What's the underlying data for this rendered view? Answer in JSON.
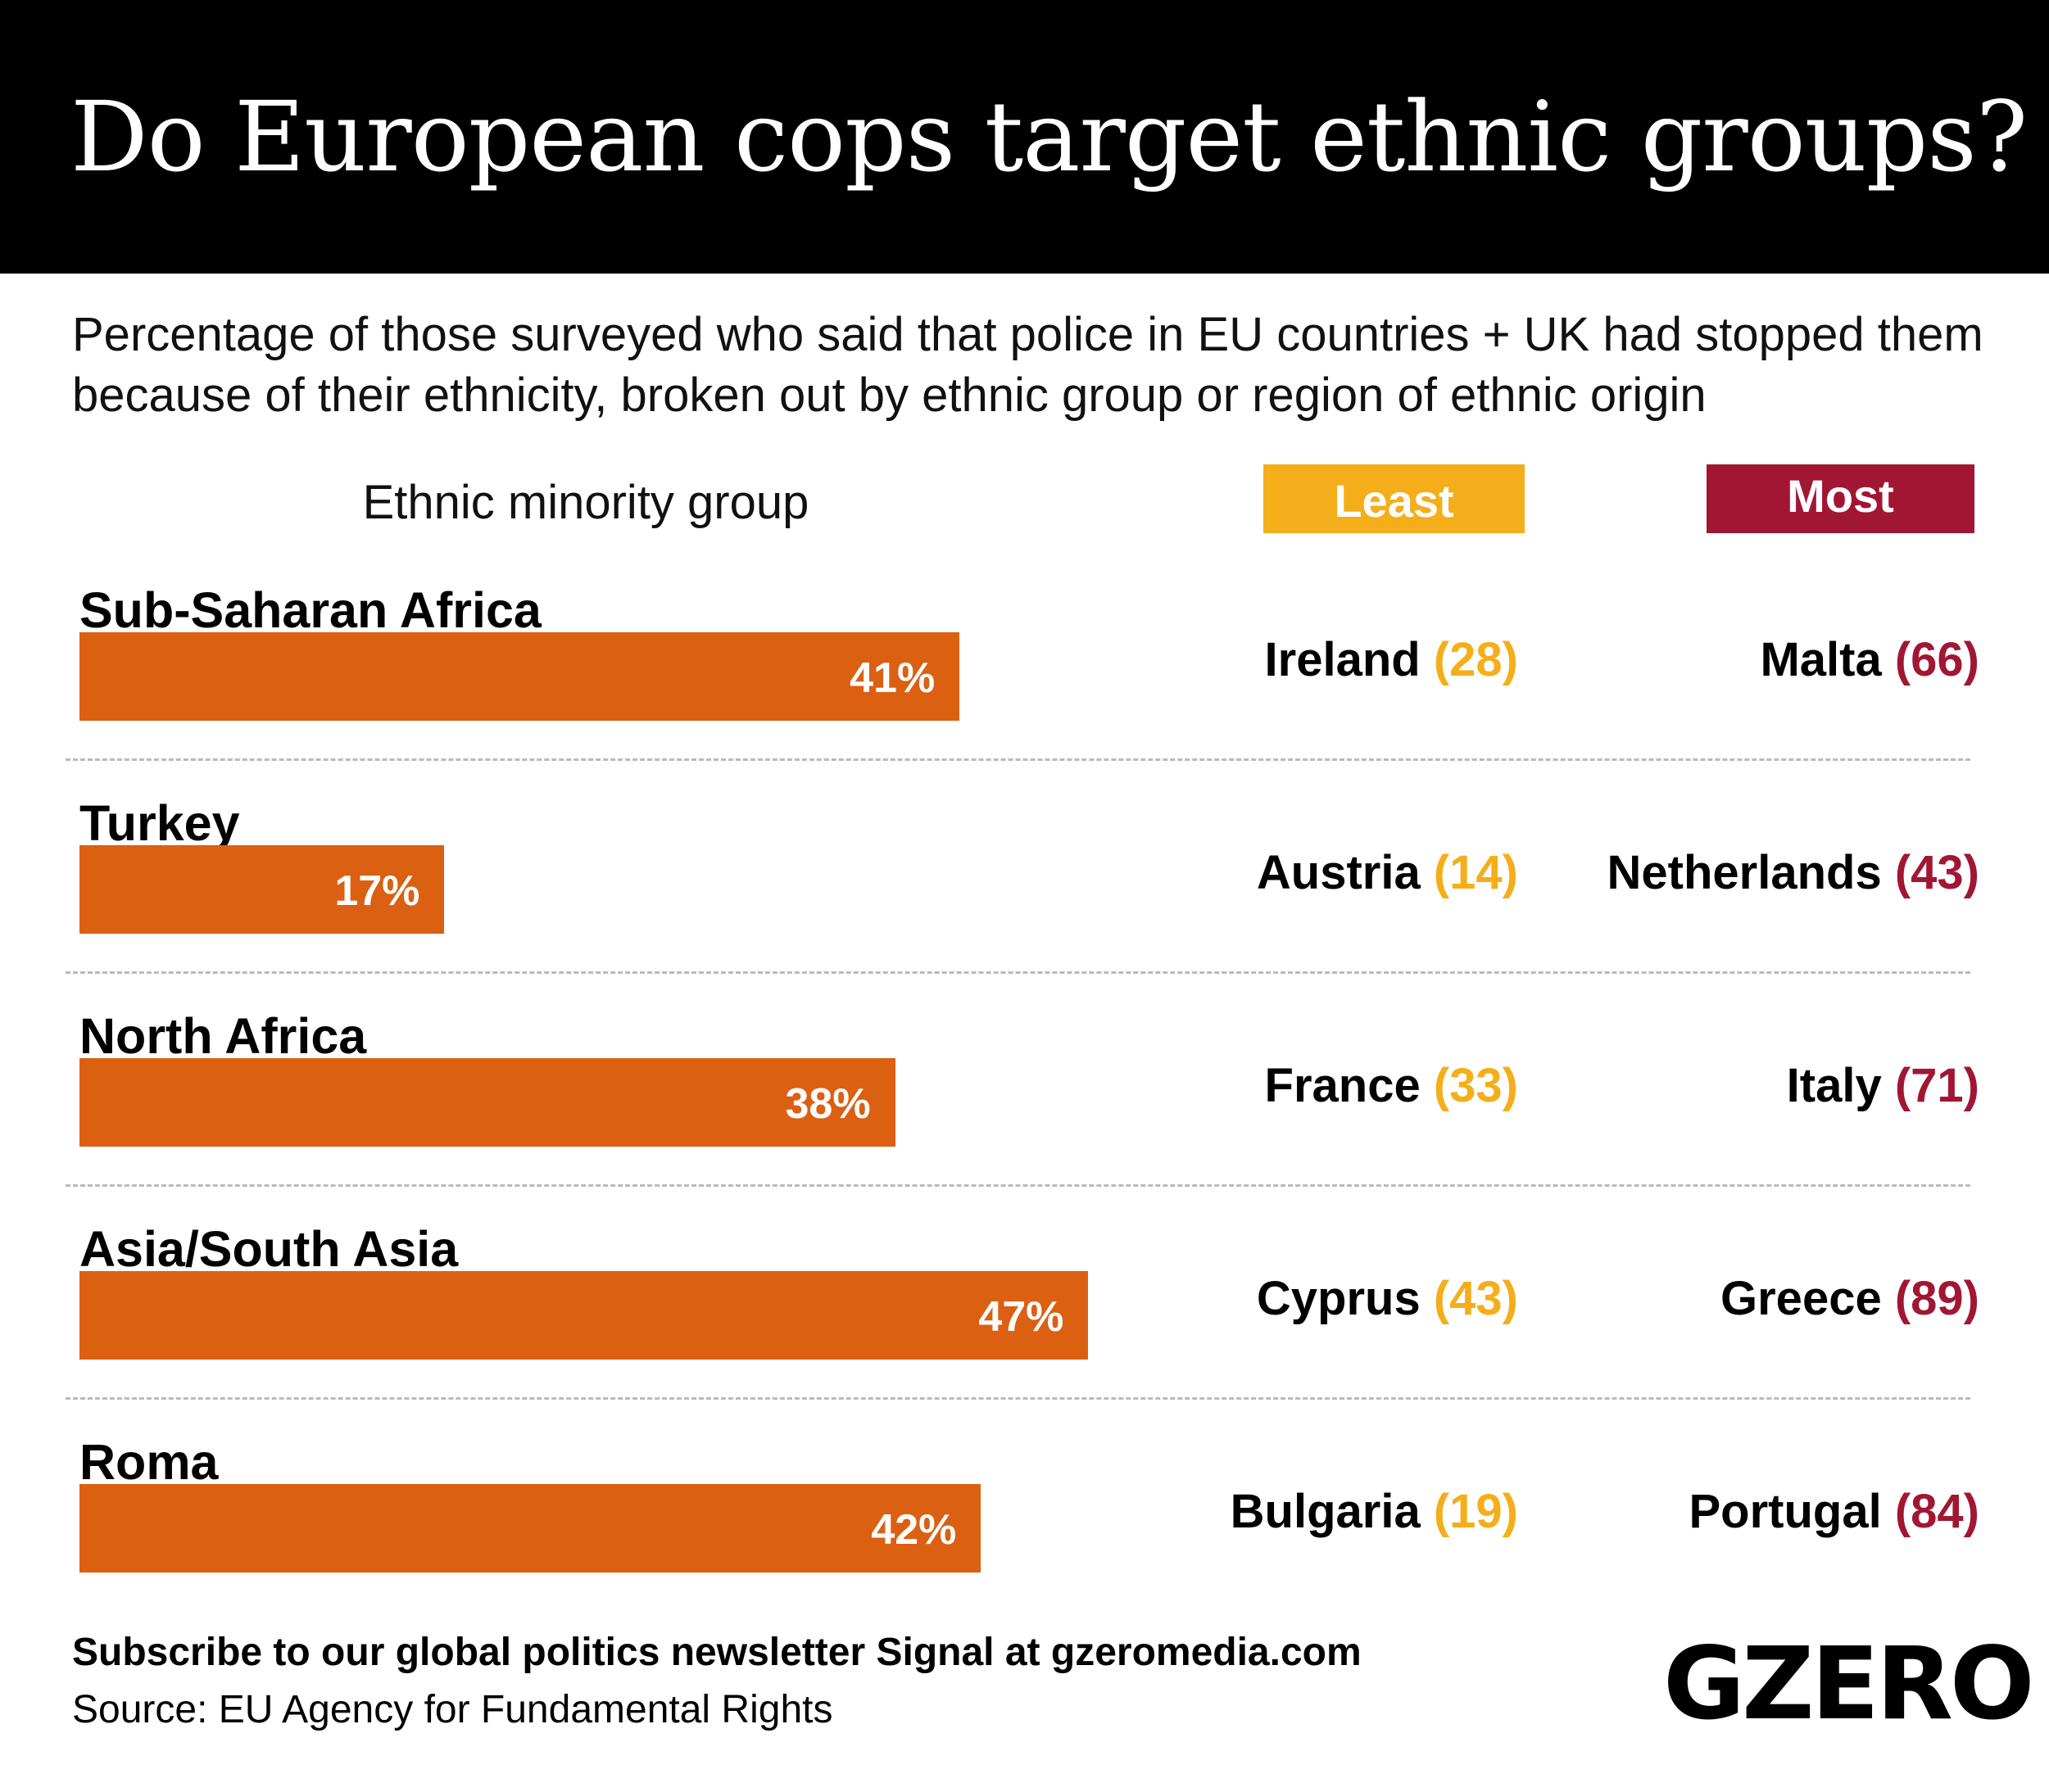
{
  "title": "Do European cops target ethnic groups?",
  "subtitle": "Percentage of those surveyed who said that police in EU countries + UK had stopped them because of their ethnicity, broken out by ethnic group or region of ethnic origin",
  "column_header": "Ethnic minority group",
  "legend": {
    "least": "Least",
    "most": "Most"
  },
  "colors": {
    "bar": "#db6012",
    "least": "#f4ae1a",
    "most": "#a11733",
    "header": "#000000"
  },
  "chart_data": {
    "type": "bar",
    "orientation": "horizontal",
    "title": "Do European cops target ethnic groups?",
    "categories": [
      "Sub-Saharan Africa",
      "Turkey",
      "North Africa",
      "Asia/South Asia",
      "Roma"
    ],
    "values": [
      41,
      17,
      38,
      47,
      42
    ],
    "value_labels": [
      "41%",
      "17%",
      "38%",
      "47%",
      "42%"
    ],
    "xlim": [
      0,
      100
    ],
    "grid": false,
    "least": [
      {
        "country": "Ireland",
        "value": "(28)"
      },
      {
        "country": "Austria",
        "value": "(14)"
      },
      {
        "country": "France",
        "value": "(33)"
      },
      {
        "country": "Cyprus",
        "value": "(43)"
      },
      {
        "country": "Bulgaria",
        "value": "(19)"
      }
    ],
    "most": [
      {
        "country": "Malta",
        "value": "(66)"
      },
      {
        "country": "Netherlands",
        "value": "(43)"
      },
      {
        "country": "Italy",
        "value": "(71)"
      },
      {
        "country": "Greece",
        "value": "(89)"
      },
      {
        "country": "Portugal",
        "value": "(84)"
      }
    ]
  },
  "footer": {
    "subscribe": "Subscribe to our global politics newsletter Signal at gzeromedia.com",
    "source": "Source: EU Agency for Fundamental Rights"
  },
  "logo": "GZERO"
}
